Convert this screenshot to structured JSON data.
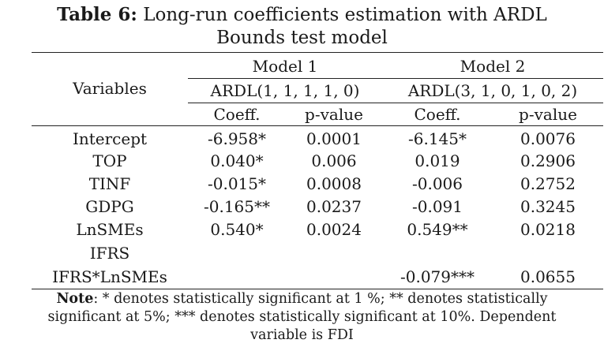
{
  "caption": {
    "label": "Table 6:",
    "line1": "Long-run coefficients estimation with ARDL",
    "line2": "Bounds test model"
  },
  "header": {
    "variables": "Variables",
    "model1": {
      "name": "Model 1",
      "spec": "ARDL(1, 1, 1, 1, 0)",
      "coef": "Coeff.",
      "pval": "p-value"
    },
    "model2": {
      "name": "Model 2",
      "spec": "ARDL(3, 1, 0, 1, 0, 2)",
      "coef": "Coeff.",
      "pval": "p-value"
    }
  },
  "rows": [
    {
      "var": "Intercept",
      "m1c": "-6.958*",
      "m1p": "0.0001",
      "m2c": "-6.145*",
      "m2p": "0.0076"
    },
    {
      "var": "TOP",
      "m1c": "0.040*",
      "m1p": "0.006",
      "m2c": "0.019",
      "m2p": "0.2906"
    },
    {
      "var": "TINF",
      "m1c": "-0.015*",
      "m1p": "0.0008",
      "m2c": "-0.006",
      "m2p": "0.2752"
    },
    {
      "var": "GDPG",
      "m1c": "-0.165**",
      "m1p": "0.0237",
      "m2c": "-0.091",
      "m2p": "0.3245"
    },
    {
      "var": "LnSMEs",
      "m1c": "0.540*",
      "m1p": "0.0024",
      "m2c": "0.549**",
      "m2p": "0.0218"
    },
    {
      "var": "IFRS",
      "m1c": "",
      "m1p": "",
      "m2c": "",
      "m2p": ""
    },
    {
      "var": "IFRS*LnSMEs",
      "m1c": "",
      "m1p": "",
      "m2c": "-0.079***",
      "m2p": "0.0655"
    }
  ],
  "note": {
    "label": "Note",
    "line1": ": * denotes statistically significant at 1 %; ** denotes statistically",
    "line2": "significant at 5%; *** denotes statistically significant at 10%. Dependent",
    "line3": "variable is FDI"
  }
}
